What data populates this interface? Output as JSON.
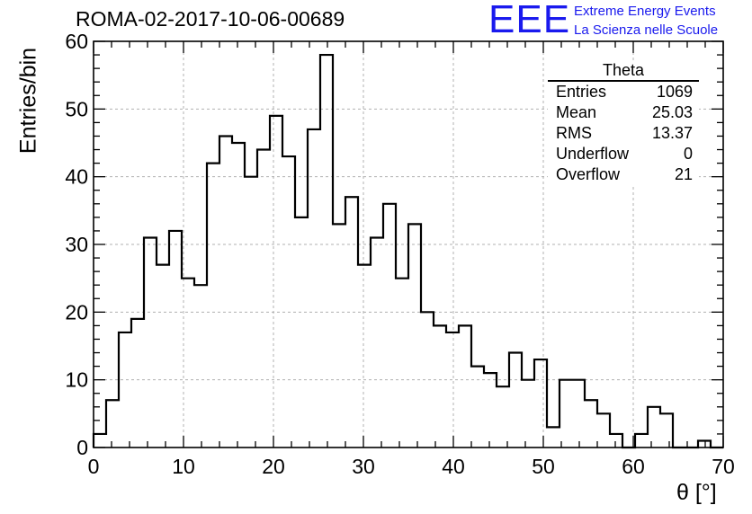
{
  "chart_data": {
    "type": "histogram",
    "title": "ROMA-02-2017-10-06-00689",
    "xlabel": "θ [°]",
    "ylabel": "Entries/bin",
    "xlim": [
      0,
      70
    ],
    "ylim": [
      0,
      60
    ],
    "xticks": [
      0,
      10,
      20,
      30,
      40,
      50,
      60,
      70
    ],
    "yticks": [
      0,
      10,
      20,
      30,
      40,
      50,
      60
    ],
    "grid": true,
    "bin_width": 1.4,
    "bin_edges": [
      0,
      1.4,
      2.8,
      4.2,
      5.6,
      7.0,
      8.4,
      9.8,
      11.2,
      12.6,
      14.0,
      15.4,
      16.8,
      18.2,
      19.6,
      21.0,
      22.4,
      23.8,
      25.2,
      26.6,
      28.0,
      29.4,
      30.8,
      32.2,
      33.6,
      35.0,
      36.4,
      37.8,
      39.2,
      40.6,
      42.0,
      43.4,
      44.8,
      46.2,
      47.6,
      49.0,
      50.4,
      51.8,
      53.2,
      54.6,
      56.0,
      57.4,
      58.8,
      60.2,
      61.6,
      63.0,
      64.4,
      65.8,
      67.2,
      68.6,
      70.0
    ],
    "values": [
      2,
      7,
      17,
      19,
      31,
      27,
      32,
      25,
      24,
      42,
      46,
      45,
      40,
      44,
      49,
      43,
      34,
      47,
      58,
      33,
      37,
      27,
      31,
      36,
      25,
      33,
      20,
      18,
      17,
      18,
      12,
      11,
      9,
      14,
      10,
      13,
      3,
      10,
      10,
      7,
      5,
      2,
      0,
      2,
      6,
      5,
      0,
      0,
      1,
      0
    ],
    "stats": {
      "name": "Theta",
      "rows": [
        {
          "label": "Entries",
          "value": "1069"
        },
        {
          "label": "Mean",
          "value": "25.03"
        },
        {
          "label": "RMS",
          "value": "13.37"
        },
        {
          "label": "Underflow",
          "value": "0"
        },
        {
          "label": "Overflow",
          "value": "21"
        }
      ]
    }
  },
  "logo": {
    "letters": "EEE",
    "line1": "Extreme Energy Events",
    "line2": "La Scienza nelle Scuole"
  },
  "colors": {
    "histogram": "#000000",
    "grid": "#b0b0b0",
    "logo": "#1a1aee"
  }
}
